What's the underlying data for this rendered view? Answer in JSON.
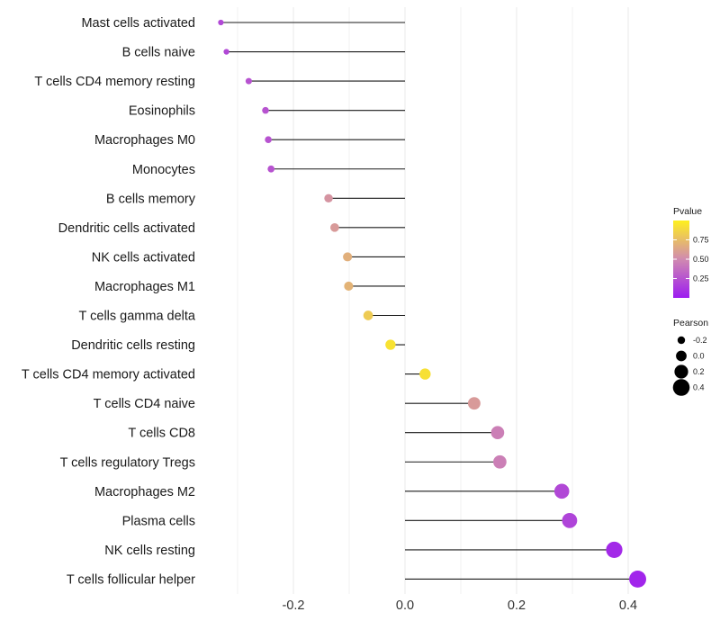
{
  "chart_data": {
    "type": "lollipop",
    "title": "",
    "xlabel": "",
    "ylabel": "",
    "xlim": [
      -0.3,
      0.42
    ],
    "x_ticks": [
      -0.2,
      0.0,
      0.2,
      0.4
    ],
    "x_tick_labels": [
      "-0.2",
      "0.0",
      "0.2",
      "0.4"
    ],
    "grid": true,
    "categories": [
      "Mast cells activated",
      "B cells naive",
      "T cells CD4 memory resting",
      "Eosinophils",
      "Macrophages M0",
      "Monocytes",
      "B cells memory",
      "Dendritic cells activated",
      "NK cells activated",
      "Macrophages M1",
      "T cells gamma delta",
      "Dendritic cells resting",
      "T cells CD4 memory activated",
      "T cells CD4 naive",
      "T cells CD8",
      "T cells regulatory  Tregs ",
      "Macrophages M2",
      "Plasma cells",
      "NK cells resting",
      "T cells follicular helper"
    ],
    "pearson": [
      -0.33,
      -0.32,
      -0.28,
      -0.25,
      -0.245,
      -0.24,
      -0.137,
      -0.126,
      -0.103,
      -0.101,
      -0.066,
      -0.026,
      0.036,
      0.124,
      0.166,
      0.17,
      0.281,
      0.295,
      0.375,
      0.417
    ],
    "pvalue": [
      0.2,
      0.2,
      0.25,
      0.25,
      0.25,
      0.25,
      0.55,
      0.58,
      0.68,
      0.7,
      0.82,
      0.93,
      0.92,
      0.58,
      0.45,
      0.45,
      0.2,
      0.18,
      0.06,
      0.04
    ],
    "legends": {
      "color": {
        "title": "Pvalue",
        "ticks": [
          0.25,
          0.5,
          0.75
        ],
        "tick_labels": [
          "0.25",
          "0.50",
          "0.75"
        ],
        "range": [
          0.0,
          1.0
        ],
        "low_color": "#9d1cf0",
        "mid_color": "#d08ab0",
        "high_color": "#fff01e"
      },
      "size": {
        "title": "Pearson",
        "values": [
          -0.2,
          0.0,
          0.2,
          0.4
        ],
        "labels": [
          "-0.2",
          "0.0",
          "0.2",
          "0.4"
        ]
      }
    },
    "colors": {
      "segment": "#1a1a1a",
      "grid": "#ebebeb",
      "background": "#ffffff"
    }
  }
}
